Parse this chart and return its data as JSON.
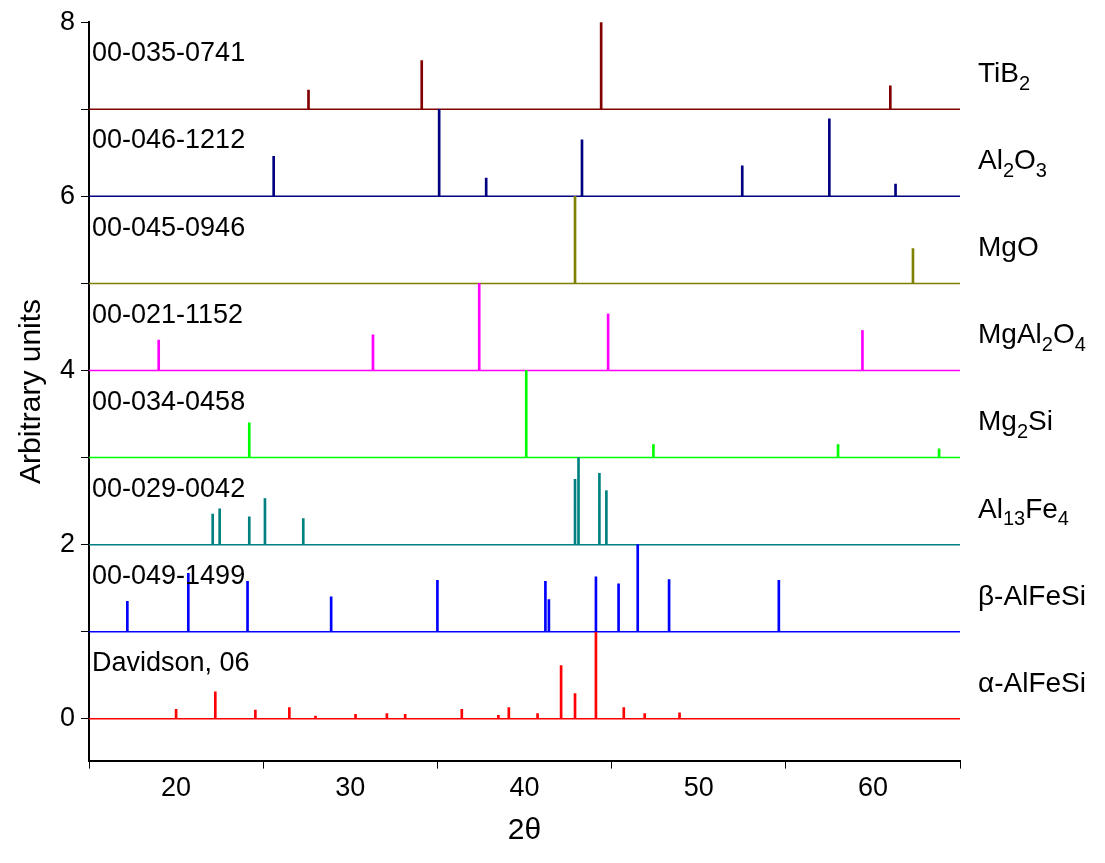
{
  "chart_data": {
    "type": "bar",
    "xlabel": "2θ",
    "ylabel": "Arbitrary units",
    "xlim": [
      15,
      65
    ],
    "xticks": [
      20,
      30,
      40,
      50,
      60
    ],
    "ylim": [
      -0.48,
      8
    ],
    "yticks": [
      0,
      {
        "value": 1,
        "label": null
      },
      2,
      {
        "value": 3,
        "label": null
      },
      4,
      {
        "value": 5,
        "label": null
      },
      6,
      {
        "value": 7,
        "label": null
      },
      8
    ],
    "grid": false,
    "legend": false,
    "series": [
      {
        "name": "TiB$_{2}$",
        "color": "#800000",
        "x": [
          27.6,
          34.1,
          44.4,
          61.0
        ],
        "base": [
          7,
          7,
          7,
          7
        ],
        "values": [
          0.22,
          0.56,
          1.0,
          0.27
        ]
      },
      {
        "name": "Al$_{2}$O$_{3}$",
        "color": "#000080",
        "x": [
          25.6,
          35.1,
          37.8,
          43.3,
          52.5,
          57.5,
          61.3
        ],
        "base": [
          6,
          6,
          6,
          6,
          6,
          6,
          6
        ],
        "values": [
          0.46,
          1.0,
          0.21,
          0.65,
          0.35,
          0.89,
          0.14
        ]
      },
      {
        "name": "MgO",
        "color": "#808000",
        "x": [
          42.9,
          62.3
        ],
        "base": [
          5,
          5
        ],
        "values": [
          1.0,
          0.4
        ]
      },
      {
        "name": "MgAl$_{2}$O$_{4}$",
        "color": "#ff00ff",
        "x": [
          19.0,
          31.3,
          37.4,
          44.8,
          59.4
        ],
        "base": [
          4,
          4,
          4,
          4,
          4
        ],
        "values": [
          0.35,
          0.41,
          1.0,
          0.65,
          0.46
        ]
      },
      {
        "name": "Mg$_{2}$Si",
        "color": "#00ff00",
        "x": [
          24.2,
          40.1,
          47.4,
          58.0,
          63.8
        ],
        "base": [
          3,
          3,
          3,
          3,
          3
        ],
        "values": [
          0.4,
          1.0,
          0.15,
          0.15,
          0.1
        ]
      },
      {
        "name": "Al$_{13}$Fe$_{4}$",
        "color": "#008080",
        "x": [
          22.1,
          22.5,
          24.2,
          25.1,
          27.3,
          42.9,
          43.1,
          44.3,
          44.7
        ],
        "base": [
          2,
          2,
          2,
          2,
          2,
          2,
          2,
          2,
          2
        ],
        "values": [
          0.35,
          0.41,
          0.32,
          0.53,
          0.3,
          0.75,
          1.0,
          0.82,
          0.62
        ]
      },
      {
        "name": "β-AlFeSi",
        "color": "#0000ff",
        "x": [
          17.2,
          20.7,
          24.1,
          28.9,
          35.0,
          41.2,
          41.4,
          44.1,
          45.4,
          46.5,
          48.3,
          54.6
        ],
        "base": [
          1,
          1,
          1,
          1,
          1,
          1,
          1,
          1,
          1,
          1,
          1,
          1
        ],
        "values": [
          0.35,
          0.67,
          0.58,
          0.4,
          0.59,
          0.58,
          0.37,
          0.63,
          0.55,
          1.0,
          0.6,
          0.59
        ]
      },
      {
        "name": "α-AlFeSi",
        "color": "#ff0000",
        "x": [
          20.0,
          22.25,
          24.55,
          26.5,
          28.0,
          30.3,
          32.1,
          33.15,
          36.4,
          38.5,
          39.1,
          40.75,
          42.1,
          42.9,
          44.1,
          45.7,
          46.9,
          48.9
        ],
        "base": [
          0,
          0,
          0,
          0,
          0,
          0,
          0,
          0,
          0,
          0,
          0,
          0,
          0,
          0,
          0,
          0,
          0,
          0
        ],
        "values": [
          0.11,
          0.31,
          0.1,
          0.13,
          0.03,
          0.05,
          0.06,
          0.05,
          0.11,
          0.04,
          0.13,
          0.06,
          0.61,
          0.29,
          1.0,
          0.13,
          0.06,
          0.07
        ]
      }
    ],
    "ref_lines": [
      {
        "axis": "y",
        "value": 7,
        "color": "#800000"
      },
      {
        "axis": "y",
        "value": 6,
        "color": "#000080"
      },
      {
        "axis": "y",
        "value": 5,
        "color": "#808000"
      },
      {
        "axis": "y",
        "value": 4,
        "color": "#ff00ff"
      },
      {
        "axis": "y",
        "value": 3,
        "color": "#00ff00"
      },
      {
        "axis": "y",
        "value": 2,
        "color": "#008080"
      },
      {
        "axis": "y",
        "value": 1,
        "color": "#0000ff"
      },
      {
        "axis": "y",
        "value": 0,
        "color": "#ff0000"
      }
    ],
    "annotations": [
      "00-035-0741",
      "00-046-1212",
      "00-045-0946",
      "00-021-1152",
      "00-034-0458",
      "00-029-0042",
      "00-049-1499",
      "Davidson, 06"
    ]
  }
}
